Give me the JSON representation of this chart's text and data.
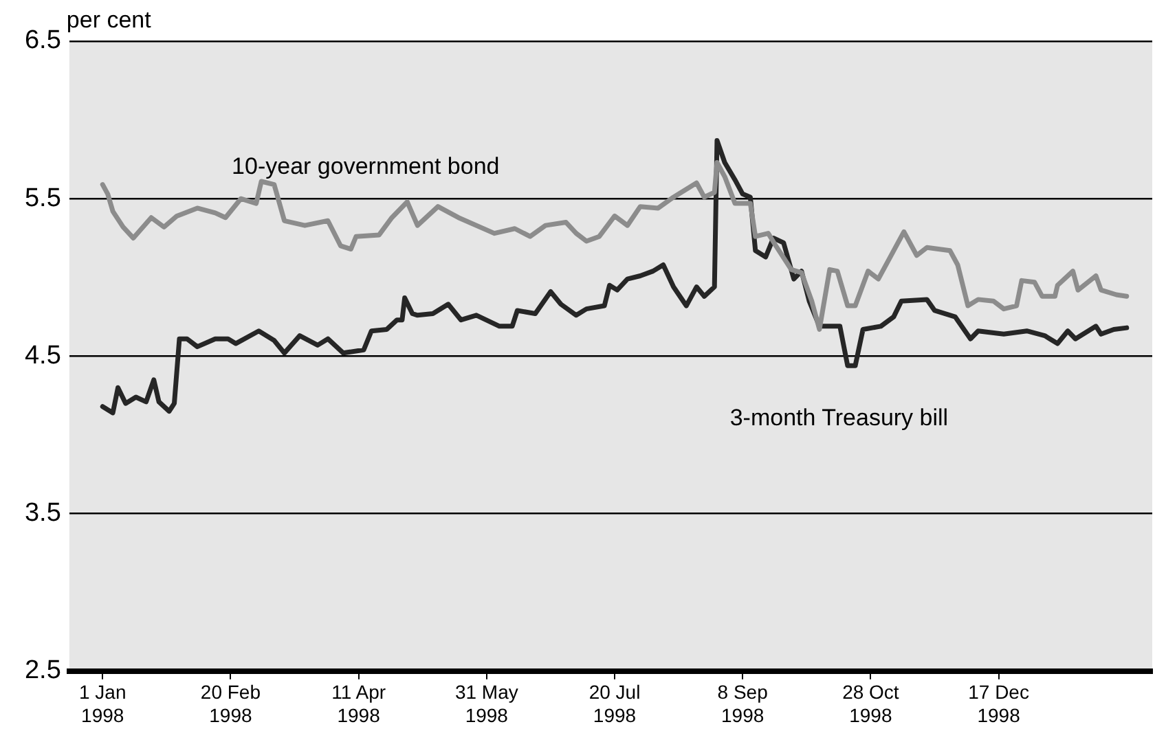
{
  "chart_data": {
    "type": "line",
    "ylabel": "per cent",
    "xlim": [
      "1997-12-19",
      "1999-02-15"
    ],
    "xticks": [
      {
        "value": "1998-01-01",
        "label": "1 Jan 1998"
      },
      {
        "value": "1998-02-20",
        "label": "20 Feb 1998"
      },
      {
        "value": "1998-04-11",
        "label": "11 Apr 1998"
      },
      {
        "value": "1998-05-31",
        "label": "31 May 1998"
      },
      {
        "value": "1998-07-20",
        "label": "20 Jul 1998"
      },
      {
        "value": "1998-09-08",
        "label": "8 Sep 1998"
      },
      {
        "value": "1998-10-28",
        "label": "28 Oct 1998"
      },
      {
        "value": "1998-12-17",
        "label": "17 Dec 1998"
      }
    ],
    "ylim": [
      2.5,
      6.5
    ],
    "yticks": [
      2.5,
      3.5,
      4.5,
      5.5,
      6.5
    ],
    "grid": "y",
    "legend": false,
    "marker": "none",
    "line_style": "solid",
    "series": [
      {
        "name": "10-year government bond",
        "color": "#8c8c8c",
        "x": [
          "1998-01-01",
          "1998-01-03",
          "1998-01-05",
          "1998-01-09",
          "1998-01-13",
          "1998-01-20",
          "1998-01-25",
          "1998-01-30",
          "1998-02-07",
          "1998-02-14",
          "1998-02-18",
          "1998-02-24",
          "1998-03-02",
          "1998-03-04",
          "1998-03-09",
          "1998-03-13",
          "1998-03-21",
          "1998-03-30",
          "1998-04-04",
          "1998-04-08",
          "1998-04-10",
          "1998-04-19",
          "1998-04-24",
          "1998-04-30",
          "1998-05-04",
          "1998-05-12",
          "1998-05-20",
          "1998-06-03",
          "1998-06-11",
          "1998-06-17",
          "1998-06-23",
          "1998-07-01",
          "1998-07-05",
          "1998-07-09",
          "1998-07-14",
          "1998-07-20",
          "1998-07-25",
          "1998-07-30",
          "1998-08-06",
          "1998-08-12",
          "1998-08-21",
          "1998-08-24",
          "1998-08-28",
          "1998-08-29",
          "1998-09-01",
          "1998-09-05",
          "1998-09-11",
          "1998-09-13",
          "1998-09-18",
          "1998-09-21",
          "1998-09-27",
          "1998-10-01",
          "1998-10-05",
          "1998-10-08",
          "1998-10-12",
          "1998-10-15",
          "1998-10-19",
          "1998-10-22",
          "1998-10-27",
          "1998-10-31",
          "1998-11-06",
          "1998-11-10",
          "1998-11-15",
          "1998-11-19",
          "1998-11-28",
          "1998-12-01",
          "1998-12-05",
          "1998-12-09",
          "1998-12-15",
          "1998-12-19",
          "1998-12-24",
          "1998-12-26",
          "1998-12-31",
          "1999-01-03",
          "1999-01-08",
          "1999-01-09",
          "1999-01-15",
          "1999-01-17",
          "1999-01-24",
          "1999-01-26",
          "1999-02-01",
          "1999-02-05"
        ],
        "values": [
          5.59,
          5.53,
          5.42,
          5.32,
          5.25,
          5.38,
          5.32,
          5.39,
          5.44,
          5.41,
          5.38,
          5.5,
          5.47,
          5.61,
          5.59,
          5.36,
          5.33,
          5.36,
          5.2,
          5.18,
          5.26,
          5.27,
          5.38,
          5.48,
          5.33,
          5.45,
          5.38,
          5.28,
          5.31,
          5.26,
          5.33,
          5.35,
          5.28,
          5.23,
          5.26,
          5.39,
          5.33,
          5.45,
          5.44,
          5.51,
          5.6,
          5.51,
          5.54,
          5.73,
          5.64,
          5.47,
          5.47,
          5.26,
          5.28,
          5.2,
          5.05,
          5.03,
          4.85,
          4.67,
          5.05,
          5.04,
          4.82,
          4.82,
          5.04,
          4.99,
          5.17,
          5.29,
          5.14,
          5.19,
          5.17,
          5.08,
          4.82,
          4.86,
          4.85,
          4.8,
          4.82,
          4.98,
          4.97,
          4.88,
          4.88,
          4.95,
          5.04,
          4.92,
          5.01,
          4.92,
          4.89,
          4.88
        ]
      },
      {
        "name": "3-month Treasury bill",
        "color": "#262626",
        "x": [
          "1998-01-01",
          "1998-01-05",
          "1998-01-07",
          "1998-01-10",
          "1998-01-14",
          "1998-01-18",
          "1998-01-21",
          "1998-01-23",
          "1998-01-27",
          "1998-01-29",
          "1998-01-31",
          "1998-02-03",
          "1998-02-07",
          "1998-02-14",
          "1998-02-19",
          "1998-02-22",
          "1998-03-03",
          "1998-03-09",
          "1998-03-13",
          "1998-03-19",
          "1998-03-26",
          "1998-03-30",
          "1998-04-05",
          "1998-04-13",
          "1998-04-16",
          "1998-04-22",
          "1998-04-26",
          "1998-04-28",
          "1998-04-29",
          "1998-05-02",
          "1998-05-04",
          "1998-05-10",
          "1998-05-16",
          "1998-05-21",
          "1998-05-27",
          "1998-06-05",
          "1998-06-10",
          "1998-06-12",
          "1998-06-19",
          "1998-06-25",
          "1998-06-29",
          "1998-07-05",
          "1998-07-09",
          "1998-07-16",
          "1998-07-18",
          "1998-07-21",
          "1998-07-25",
          "1998-07-30",
          "1998-08-04",
          "1998-08-08",
          "1998-08-12",
          "1998-08-17",
          "1998-08-21",
          "1998-08-24",
          "1998-08-28",
          "1998-08-29",
          "1998-09-01",
          "1998-09-05",
          "1998-09-08",
          "1998-09-11",
          "1998-09-13",
          "1998-09-17",
          "1998-09-20",
          "1998-09-24",
          "1998-09-28",
          "1998-10-01",
          "1998-10-04",
          "1998-10-08",
          "1998-10-16",
          "1998-10-19",
          "1998-10-22",
          "1998-10-25",
          "1998-11-01",
          "1998-11-06",
          "1998-11-09",
          "1998-11-19",
          "1998-11-22",
          "1998-11-30",
          "1998-12-06",
          "1998-12-09",
          "1998-12-19",
          "1998-12-28",
          "1999-01-04",
          "1999-01-09",
          "1999-01-13",
          "1999-01-16",
          "1999-01-24",
          "1999-01-26",
          "1999-01-31",
          "1999-02-05"
        ],
        "values": [
          4.18,
          4.14,
          4.3,
          4.2,
          4.24,
          4.21,
          4.35,
          4.21,
          4.15,
          4.2,
          4.61,
          4.61,
          4.56,
          4.61,
          4.61,
          4.58,
          4.66,
          4.6,
          4.52,
          4.63,
          4.57,
          4.61,
          4.52,
          4.54,
          4.66,
          4.67,
          4.73,
          4.73,
          4.87,
          4.77,
          4.76,
          4.77,
          4.83,
          4.73,
          4.76,
          4.69,
          4.69,
          4.79,
          4.77,
          4.91,
          4.83,
          4.76,
          4.8,
          4.82,
          4.95,
          4.92,
          4.99,
          5.01,
          5.04,
          5.08,
          4.94,
          4.82,
          4.94,
          4.88,
          4.94,
          5.87,
          5.73,
          5.62,
          5.53,
          5.51,
          5.17,
          5.13,
          5.25,
          5.22,
          4.99,
          5.04,
          4.85,
          4.69,
          4.69,
          4.44,
          4.44,
          4.67,
          4.69,
          4.75,
          4.85,
          4.86,
          4.79,
          4.75,
          4.61,
          4.66,
          4.64,
          4.66,
          4.63,
          4.58,
          4.66,
          4.61,
          4.69,
          4.64,
          4.67,
          4.68
        ]
      }
    ]
  }
}
